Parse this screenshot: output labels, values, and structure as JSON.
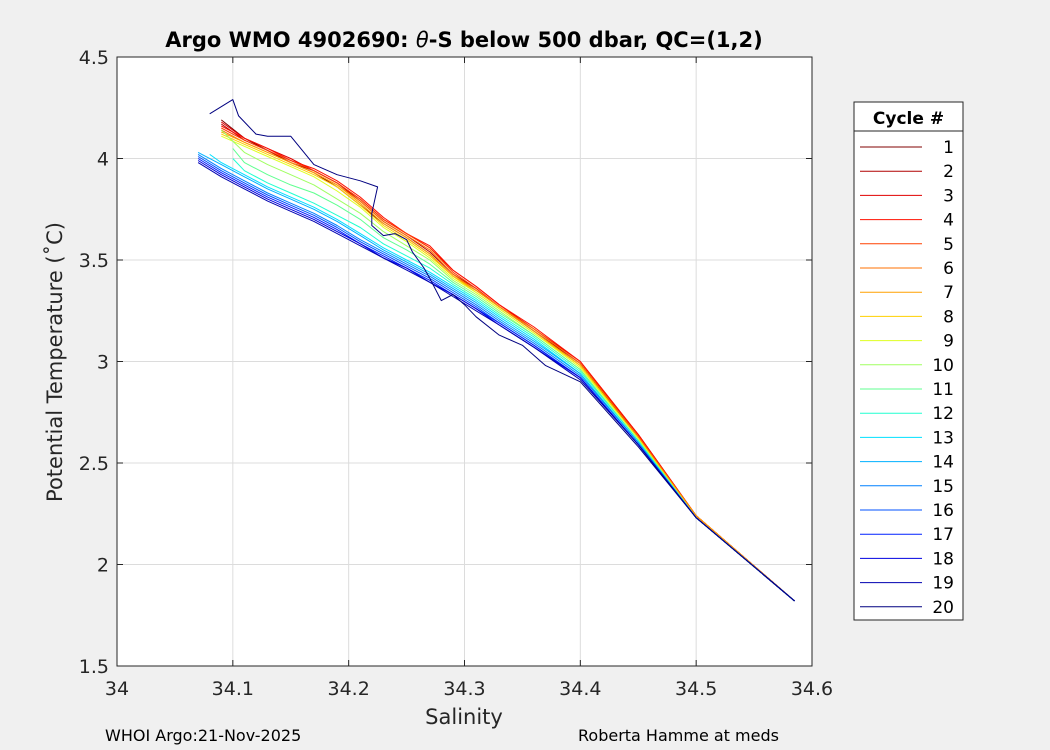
{
  "chart_data": {
    "type": "line",
    "title_prefix": "Argo WMO 4902690: ",
    "title_theta": "θ",
    "title_suffix": "-S below 500 dbar,  QC=(1,2)",
    "xlabel": "Salinity",
    "ylabel": "Potential Temperature (˚C)",
    "xlim": [
      34,
      34.6
    ],
    "ylim": [
      1.5,
      4.5
    ],
    "xticks": [
      34,
      34.1,
      34.2,
      34.3,
      34.4,
      34.5,
      34.6
    ],
    "xtick_labels": [
      "34",
      "34.1",
      "34.2",
      "34.3",
      "34.4",
      "34.5",
      "34.6"
    ],
    "yticks": [
      1.5,
      2,
      2.5,
      3,
      3.5,
      4,
      4.5
    ],
    "ytick_labels": [
      "1.5",
      "2",
      "2.5",
      "3",
      "3.5",
      "4",
      "4.5"
    ],
    "grid": true,
    "legend_title": "Cycle #",
    "legend_position": "outside-right",
    "series": [
      {
        "name": "1",
        "color": "#800000",
        "x": [
          34.585,
          34.5,
          34.45,
          34.4,
          34.36,
          34.33,
          34.31,
          34.29,
          34.27,
          34.25,
          34.23,
          34.21,
          34.19,
          34.17,
          34.15,
          34.13,
          34.11,
          34.09
        ],
        "y": [
          1.82,
          2.24,
          2.63,
          2.98,
          3.15,
          3.27,
          3.35,
          3.42,
          3.53,
          3.61,
          3.68,
          3.77,
          3.86,
          3.93,
          3.98,
          4.04,
          4.1,
          4.19
        ]
      },
      {
        "name": "2",
        "color": "#b00000",
        "x": [
          34.585,
          34.5,
          34.45,
          34.4,
          34.36,
          34.33,
          34.31,
          34.29,
          34.27,
          34.25,
          34.23,
          34.21,
          34.19,
          34.17,
          34.15,
          34.13,
          34.11,
          34.09
        ],
        "y": [
          1.82,
          2.24,
          2.64,
          2.99,
          3.15,
          3.27,
          3.36,
          3.43,
          3.54,
          3.62,
          3.69,
          3.79,
          3.88,
          3.94,
          3.98,
          4.04,
          4.09,
          4.17
        ]
      },
      {
        "name": "3",
        "color": "#e00000",
        "x": [
          34.585,
          34.5,
          34.45,
          34.4,
          34.36,
          34.33,
          34.31,
          34.29,
          34.27,
          34.25,
          34.23,
          34.21,
          34.19,
          34.17,
          34.15,
          34.13,
          34.11,
          34.09
        ],
        "y": [
          1.82,
          2.24,
          2.64,
          3.0,
          3.16,
          3.28,
          3.37,
          3.45,
          3.56,
          3.63,
          3.7,
          3.8,
          3.88,
          3.94,
          4.0,
          4.05,
          4.1,
          4.18
        ]
      },
      {
        "name": "4",
        "color": "#ff1000",
        "x": [
          34.585,
          34.5,
          34.45,
          34.4,
          34.36,
          34.33,
          34.31,
          34.29,
          34.27,
          34.25,
          34.23,
          34.21,
          34.19,
          34.17,
          34.15,
          34.13,
          34.11,
          34.09
        ],
        "y": [
          1.82,
          2.24,
          2.64,
          3.0,
          3.17,
          3.28,
          3.37,
          3.45,
          3.57,
          3.63,
          3.71,
          3.81,
          3.89,
          3.95,
          3.99,
          4.05,
          4.1,
          4.16
        ]
      },
      {
        "name": "5",
        "color": "#ff4000",
        "x": [
          34.585,
          34.5,
          34.45,
          34.4,
          34.36,
          34.33,
          34.31,
          34.29,
          34.27,
          34.25,
          34.23,
          34.21,
          34.19,
          34.17,
          34.15,
          34.13,
          34.11,
          34.09
        ],
        "y": [
          1.82,
          2.24,
          2.63,
          2.99,
          3.16,
          3.27,
          3.36,
          3.44,
          3.56,
          3.63,
          3.7,
          3.8,
          3.88,
          3.94,
          3.99,
          4.04,
          4.09,
          4.15
        ]
      },
      {
        "name": "6",
        "color": "#ff7000",
        "x": [
          34.585,
          34.5,
          34.45,
          34.4,
          34.36,
          34.33,
          34.31,
          34.29,
          34.27,
          34.25,
          34.23,
          34.21,
          34.19,
          34.17,
          34.15,
          34.13,
          34.11,
          34.09
        ],
        "y": [
          1.82,
          2.24,
          2.63,
          2.99,
          3.16,
          3.27,
          3.35,
          3.43,
          3.55,
          3.62,
          3.69,
          3.79,
          3.87,
          3.93,
          3.98,
          4.03,
          4.08,
          4.14
        ]
      },
      {
        "name": "7",
        "color": "#ffa000",
        "x": [
          34.585,
          34.5,
          34.45,
          34.4,
          34.36,
          34.33,
          34.31,
          34.29,
          34.27,
          34.25,
          34.23,
          34.21,
          34.19,
          34.17,
          34.15,
          34.13,
          34.11,
          34.09
        ],
        "y": [
          1.82,
          2.24,
          2.62,
          2.98,
          3.15,
          3.27,
          3.35,
          3.42,
          3.53,
          3.61,
          3.68,
          3.78,
          3.87,
          3.93,
          3.98,
          4.03,
          4.08,
          4.13
        ]
      },
      {
        "name": "8",
        "color": "#ffd000",
        "x": [
          34.585,
          34.5,
          34.45,
          34.4,
          34.36,
          34.33,
          34.31,
          34.29,
          34.27,
          34.25,
          34.23,
          34.21,
          34.19,
          34.17,
          34.15,
          34.13,
          34.11,
          34.09
        ],
        "y": [
          1.82,
          2.23,
          2.62,
          2.98,
          3.14,
          3.26,
          3.34,
          3.42,
          3.52,
          3.6,
          3.67,
          3.77,
          3.86,
          3.92,
          3.97,
          4.02,
          4.07,
          4.12
        ]
      },
      {
        "name": "9",
        "color": "#dfff20",
        "x": [
          34.585,
          34.5,
          34.45,
          34.4,
          34.36,
          34.33,
          34.31,
          34.29,
          34.27,
          34.25,
          34.23,
          34.21,
          34.19,
          34.17,
          34.15,
          34.13,
          34.11,
          34.09
        ],
        "y": [
          1.82,
          2.23,
          2.62,
          2.97,
          3.14,
          3.26,
          3.34,
          3.41,
          3.51,
          3.59,
          3.66,
          3.76,
          3.84,
          3.91,
          3.96,
          4.01,
          4.06,
          4.11
        ]
      },
      {
        "name": "10",
        "color": "#a0ff60",
        "x": [
          34.585,
          34.5,
          34.45,
          34.4,
          34.36,
          34.33,
          34.31,
          34.29,
          34.27,
          34.25,
          34.23,
          34.21,
          34.19,
          34.17,
          34.15,
          34.13,
          34.11,
          34.09
        ],
        "y": [
          1.82,
          2.23,
          2.61,
          2.96,
          3.13,
          3.25,
          3.33,
          3.4,
          3.5,
          3.57,
          3.64,
          3.73,
          3.8,
          3.87,
          3.92,
          3.97,
          4.03,
          4.14
        ]
      },
      {
        "name": "11",
        "color": "#60ff90",
        "x": [
          34.585,
          34.5,
          34.45,
          34.4,
          34.36,
          34.33,
          34.31,
          34.29,
          34.27,
          34.25,
          34.23,
          34.21,
          34.19,
          34.17,
          34.15,
          34.13,
          34.11,
          34.1
        ],
        "y": [
          1.82,
          2.23,
          2.61,
          2.96,
          3.13,
          3.24,
          3.32,
          3.39,
          3.48,
          3.55,
          3.61,
          3.7,
          3.77,
          3.83,
          3.87,
          3.92,
          3.98,
          4.05
        ]
      },
      {
        "name": "12",
        "color": "#20ffd0",
        "x": [
          34.585,
          34.5,
          34.45,
          34.4,
          34.36,
          34.33,
          34.31,
          34.29,
          34.27,
          34.25,
          34.23,
          34.21,
          34.19,
          34.17,
          34.15,
          34.13,
          34.11,
          34.1
        ],
        "y": [
          1.82,
          2.23,
          2.61,
          2.95,
          3.12,
          3.23,
          3.31,
          3.38,
          3.46,
          3.52,
          3.58,
          3.66,
          3.72,
          3.78,
          3.83,
          3.88,
          3.94,
          4.0
        ]
      },
      {
        "name": "13",
        "color": "#00e0ff",
        "x": [
          34.585,
          34.5,
          34.45,
          34.4,
          34.36,
          34.33,
          34.31,
          34.29,
          34.27,
          34.25,
          34.23,
          34.21,
          34.19,
          34.17,
          34.15,
          34.13,
          34.11,
          34.09,
          34.08
        ],
        "y": [
          1.82,
          2.23,
          2.6,
          2.94,
          3.11,
          3.22,
          3.3,
          3.37,
          3.44,
          3.5,
          3.56,
          3.63,
          3.7,
          3.76,
          3.81,
          3.86,
          3.92,
          3.98,
          4.02
        ]
      },
      {
        "name": "14",
        "color": "#00b0ff",
        "x": [
          34.585,
          34.5,
          34.45,
          34.4,
          34.36,
          34.33,
          34.31,
          34.29,
          34.27,
          34.25,
          34.23,
          34.21,
          34.19,
          34.17,
          34.15,
          34.13,
          34.11,
          34.09,
          34.07
        ],
        "y": [
          1.82,
          2.23,
          2.6,
          2.94,
          3.1,
          3.21,
          3.29,
          3.36,
          3.43,
          3.49,
          3.55,
          3.62,
          3.69,
          3.75,
          3.8,
          3.85,
          3.91,
          3.97,
          4.03
        ]
      },
      {
        "name": "15",
        "color": "#0080ff",
        "x": [
          34.585,
          34.5,
          34.45,
          34.4,
          34.36,
          34.33,
          34.31,
          34.29,
          34.27,
          34.25,
          34.23,
          34.21,
          34.19,
          34.17,
          34.15,
          34.13,
          34.11,
          34.09,
          34.07
        ],
        "y": [
          1.82,
          2.23,
          2.6,
          2.93,
          3.09,
          3.2,
          3.28,
          3.35,
          3.42,
          3.48,
          3.54,
          3.6,
          3.67,
          3.73,
          3.78,
          3.83,
          3.89,
          3.95,
          4.02
        ]
      },
      {
        "name": "16",
        "color": "#0050ff",
        "x": [
          34.585,
          34.5,
          34.45,
          34.4,
          34.36,
          34.33,
          34.31,
          34.29,
          34.27,
          34.25,
          34.23,
          34.21,
          34.19,
          34.17,
          34.15,
          34.13,
          34.11,
          34.09,
          34.07
        ],
        "y": [
          1.82,
          2.23,
          2.59,
          2.92,
          3.08,
          3.19,
          3.27,
          3.34,
          3.41,
          3.47,
          3.53,
          3.59,
          3.66,
          3.72,
          3.77,
          3.82,
          3.88,
          3.94,
          4.01
        ]
      },
      {
        "name": "17",
        "color": "#0020ff",
        "x": [
          34.585,
          34.5,
          34.45,
          34.4,
          34.36,
          34.33,
          34.31,
          34.29,
          34.27,
          34.25,
          34.23,
          34.21,
          34.19,
          34.17,
          34.15,
          34.13,
          34.11,
          34.09,
          34.07
        ],
        "y": [
          1.82,
          2.23,
          2.59,
          2.92,
          3.08,
          3.19,
          3.26,
          3.33,
          3.4,
          3.46,
          3.52,
          3.58,
          3.65,
          3.71,
          3.76,
          3.81,
          3.87,
          3.93,
          4.0
        ]
      },
      {
        "name": "18",
        "color": "#0000e0",
        "x": [
          34.585,
          34.5,
          34.45,
          34.4,
          34.36,
          34.33,
          34.31,
          34.29,
          34.27,
          34.25,
          34.23,
          34.21,
          34.19,
          34.17,
          34.15,
          34.13,
          34.11,
          34.09,
          34.07
        ],
        "y": [
          1.82,
          2.23,
          2.59,
          2.92,
          3.07,
          3.18,
          3.26,
          3.33,
          3.39,
          3.46,
          3.51,
          3.58,
          3.64,
          3.7,
          3.75,
          3.8,
          3.86,
          3.92,
          3.99
        ]
      },
      {
        "name": "19",
        "color": "#0000b0",
        "x": [
          34.585,
          34.5,
          34.45,
          34.4,
          34.36,
          34.33,
          34.31,
          34.29,
          34.27,
          34.25,
          34.23,
          34.21,
          34.19,
          34.17,
          34.15,
          34.13,
          34.11,
          34.09,
          34.07
        ],
        "y": [
          1.82,
          2.23,
          2.59,
          2.91,
          3.07,
          3.18,
          3.25,
          3.32,
          3.39,
          3.45,
          3.51,
          3.57,
          3.63,
          3.69,
          3.74,
          3.79,
          3.85,
          3.91,
          3.98
        ]
      },
      {
        "name": "20",
        "color": "#000080",
        "x": [
          34.585,
          34.5,
          34.45,
          34.4,
          34.37,
          34.35,
          34.33,
          34.31,
          34.3,
          34.29,
          34.28,
          34.27,
          34.265,
          34.26,
          34.255,
          34.25,
          34.24,
          34.23,
          34.22,
          34.22,
          34.225,
          34.21,
          34.19,
          34.17,
          34.15,
          34.13,
          34.12,
          34.105,
          34.1,
          34.08
        ],
        "y": [
          1.82,
          2.23,
          2.58,
          2.9,
          2.98,
          3.08,
          3.13,
          3.22,
          3.28,
          3.33,
          3.3,
          3.41,
          3.46,
          3.5,
          3.54,
          3.6,
          3.63,
          3.62,
          3.67,
          3.73,
          3.86,
          3.89,
          3.92,
          3.97,
          4.11,
          4.11,
          4.12,
          4.21,
          4.29,
          4.22
        ]
      }
    ]
  },
  "footer": {
    "left": "WHOI Argo:21-Nov-2025",
    "right": "Roberta Hamme at meds"
  }
}
